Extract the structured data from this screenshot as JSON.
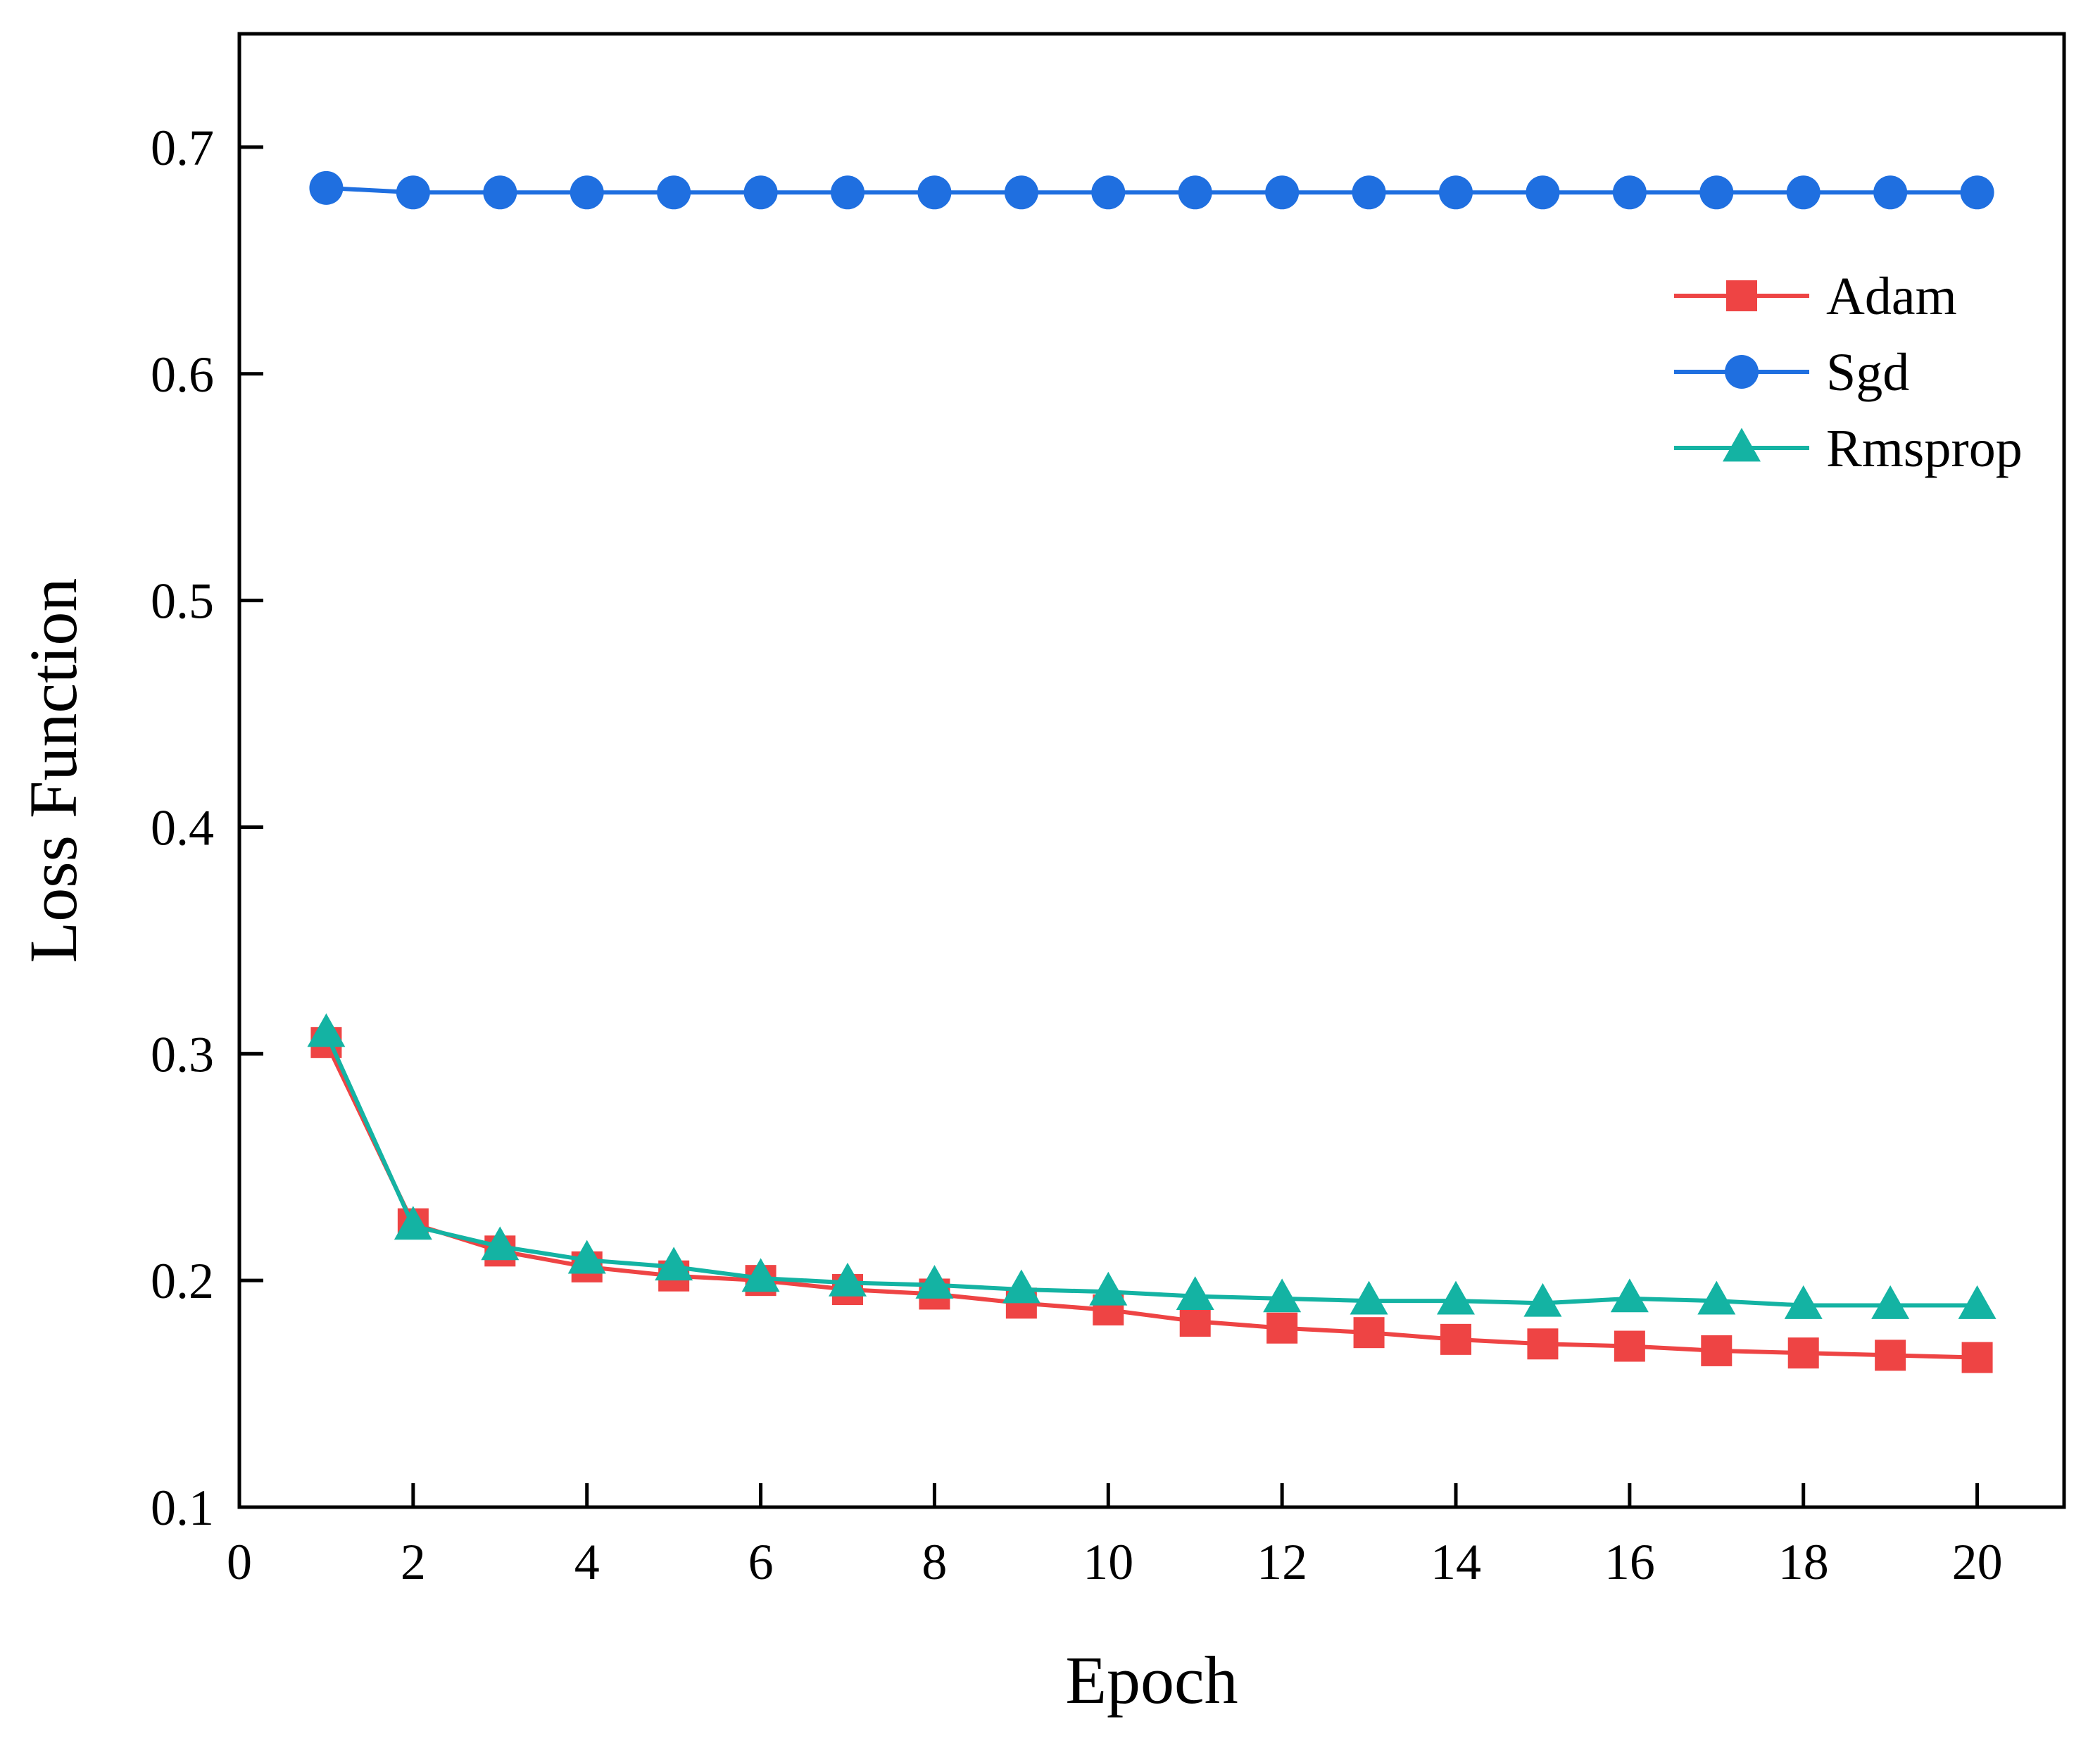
{
  "chart_data": {
    "type": "line",
    "title": "",
    "xlabel": "Epoch",
    "ylabel": "Loss Function",
    "xlim": [
      0,
      21
    ],
    "ylim": [
      0.1,
      0.75
    ],
    "x_ticks": [
      0,
      2,
      4,
      6,
      8,
      10,
      12,
      14,
      16,
      18,
      20
    ],
    "y_ticks": [
      0.1,
      0.2,
      0.3,
      0.4,
      0.5,
      0.6,
      0.7
    ],
    "x_tick_labels": [
      "0",
      "2",
      "4",
      "6",
      "8",
      "10",
      "12",
      "14",
      "16",
      "18",
      "20"
    ],
    "y_tick_labels": [
      "0.1",
      "0.2",
      "0.3",
      "0.4",
      "0.5",
      "0.6",
      "0.7"
    ],
    "grid": false,
    "legend_position": "top-right",
    "x": [
      1,
      2,
      3,
      4,
      5,
      6,
      7,
      8,
      9,
      10,
      11,
      12,
      13,
      14,
      15,
      16,
      17,
      18,
      19,
      20
    ],
    "series": [
      {
        "name": "Adam",
        "color": "#ee4444",
        "marker": "square",
        "values": [
          0.305,
          0.225,
          0.213,
          0.206,
          0.202,
          0.2,
          0.196,
          0.194,
          0.19,
          0.187,
          0.182,
          0.179,
          0.177,
          0.174,
          0.172,
          0.171,
          0.169,
          0.168,
          0.167,
          0.166
        ]
      },
      {
        "name": "Sgd",
        "color": "#1f6fe0",
        "marker": "circle",
        "values": [
          0.682,
          0.68,
          0.68,
          0.68,
          0.68,
          0.68,
          0.68,
          0.68,
          0.68,
          0.68,
          0.68,
          0.68,
          0.68,
          0.68,
          0.68,
          0.68,
          0.68,
          0.68,
          0.68,
          0.68
        ]
      },
      {
        "name": "Rmsprop",
        "color": "#14b3a3",
        "marker": "triangle",
        "values": [
          0.309,
          0.224,
          0.215,
          0.209,
          0.206,
          0.201,
          0.199,
          0.198,
          0.196,
          0.195,
          0.193,
          0.192,
          0.191,
          0.191,
          0.19,
          0.192,
          0.191,
          0.189,
          0.189,
          0.189
        ]
      }
    ]
  }
}
